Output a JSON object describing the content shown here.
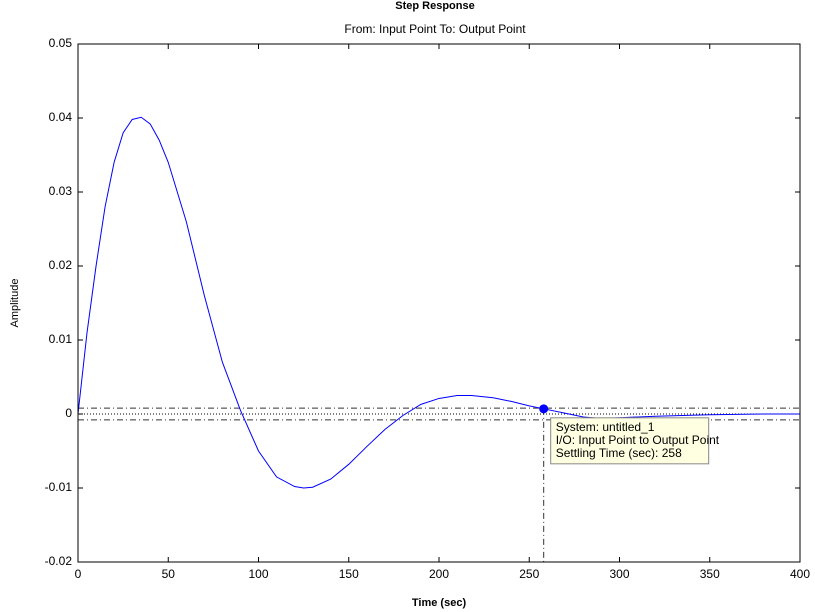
{
  "chart_data": {
    "type": "line",
    "title": "Step Response",
    "subtitle": "From: Input Point  To: Output Point",
    "xlabel": "Time (sec)",
    "ylabel": "Amplitude",
    "x": [
      0,
      5,
      10,
      15,
      20,
      25,
      30,
      35,
      40,
      45,
      50,
      60,
      70,
      80,
      90,
      100,
      110,
      120,
      125,
      130,
      140,
      150,
      160,
      170,
      180,
      190,
      200,
      210,
      218,
      230,
      240,
      250,
      258,
      270,
      280,
      290,
      300,
      320,
      350,
      380,
      400
    ],
    "series": [
      {
        "color": "#0000ff",
        "values": [
          0,
          0.011,
          0.02,
          0.028,
          0.034,
          0.038,
          0.0398,
          0.0401,
          0.0392,
          0.037,
          0.034,
          0.026,
          0.016,
          0.007,
          0.0005,
          -0.005,
          -0.0085,
          -0.0098,
          -0.01,
          -0.0099,
          -0.0088,
          -0.0068,
          -0.0044,
          -0.0021,
          -0.0002,
          0.0013,
          0.0021,
          0.0025,
          0.0025,
          0.0022,
          0.0017,
          0.0011,
          0.0007,
          0.0001,
          -0.0004,
          -0.0006,
          -0.0005,
          -0.0003,
          -0.0001,
          0,
          0
        ]
      }
    ],
    "xlim": [
      0,
      400
    ],
    "ylim": [
      -0.02,
      0.05
    ],
    "xticks": [
      0,
      50,
      100,
      150,
      200,
      250,
      300,
      350,
      400
    ],
    "yticks": [
      -0.02,
      -0.01,
      0,
      0.01,
      0.02,
      0.03,
      0.04,
      0.05
    ],
    "final_value": 0,
    "settling_band": [
      -0.0008,
      0.0008
    ],
    "settling_point": {
      "x": 258,
      "y": 0.0007
    },
    "datatip": [
      "System: untitled_1",
      "I/O: Input Point to Output Point",
      "Settling Time (sec): 258"
    ]
  }
}
